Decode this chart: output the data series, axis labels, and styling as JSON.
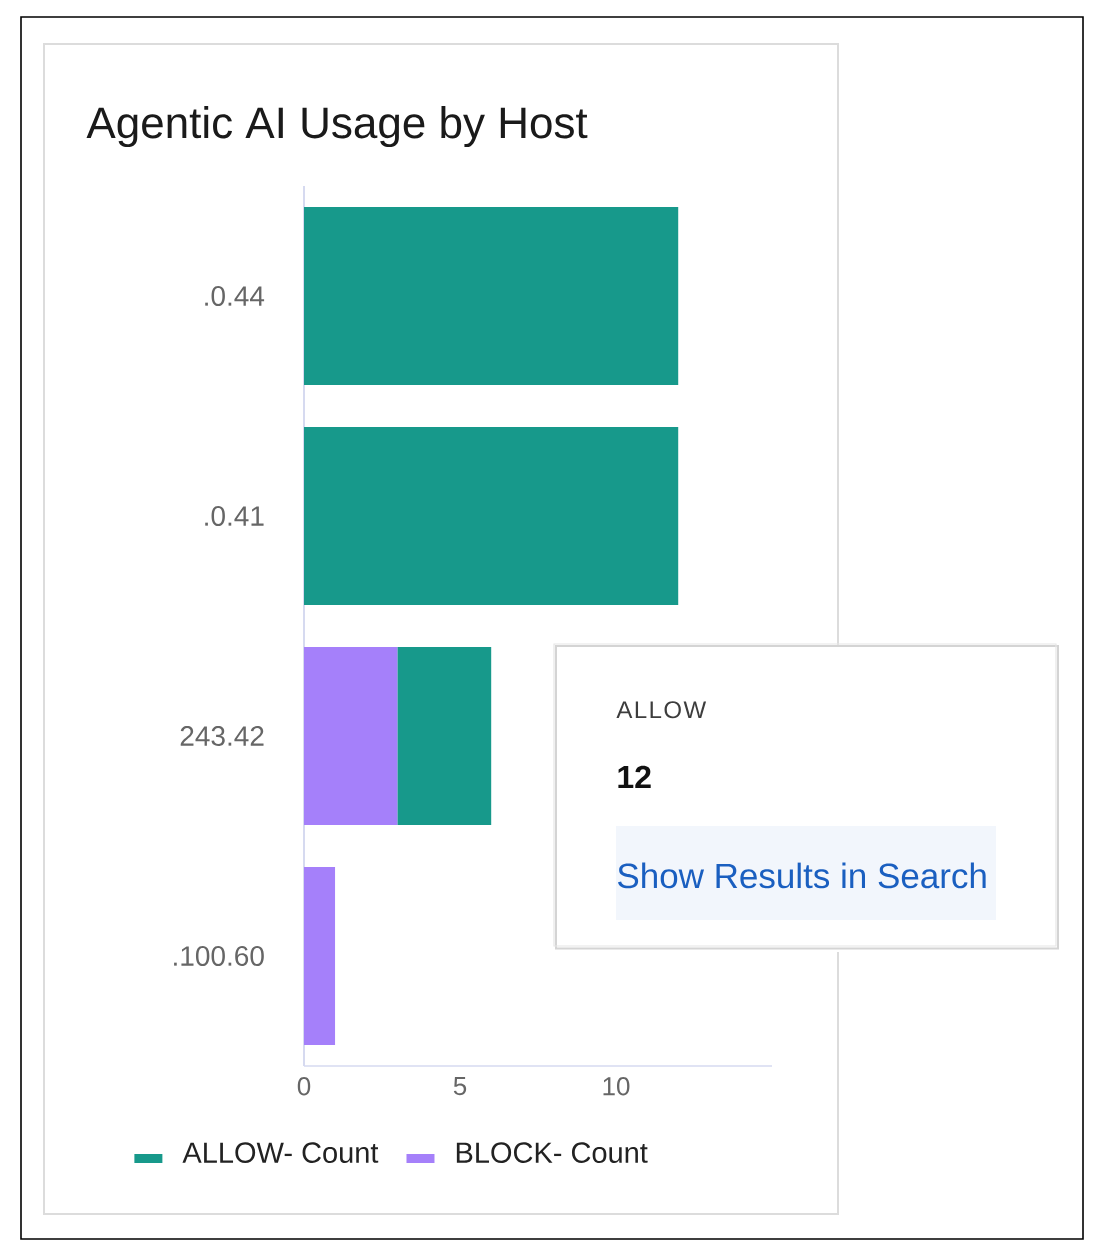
{
  "chart_data": {
    "type": "bar",
    "orientation": "horizontal",
    "stacked": true,
    "title": "Agentic AI Usage by Host",
    "categories": [
      ".0.44",
      ".0.41",
      "243.42",
      ".100.60"
    ],
    "series": [
      {
        "name": "BLOCK- Count",
        "color": "#a580fa",
        "values": [
          null,
          null,
          3,
          1
        ]
      },
      {
        "name": "ALLOW- Count",
        "color": "#17998b",
        "values": [
          12,
          12,
          3,
          null
        ]
      }
    ],
    "xlim": [
      0,
      15
    ],
    "xticks": [
      0,
      5,
      10
    ],
    "legend": "bottom",
    "annotations": [
      "ALLOW",
      "12",
      "Show Results in Search"
    ]
  }
}
